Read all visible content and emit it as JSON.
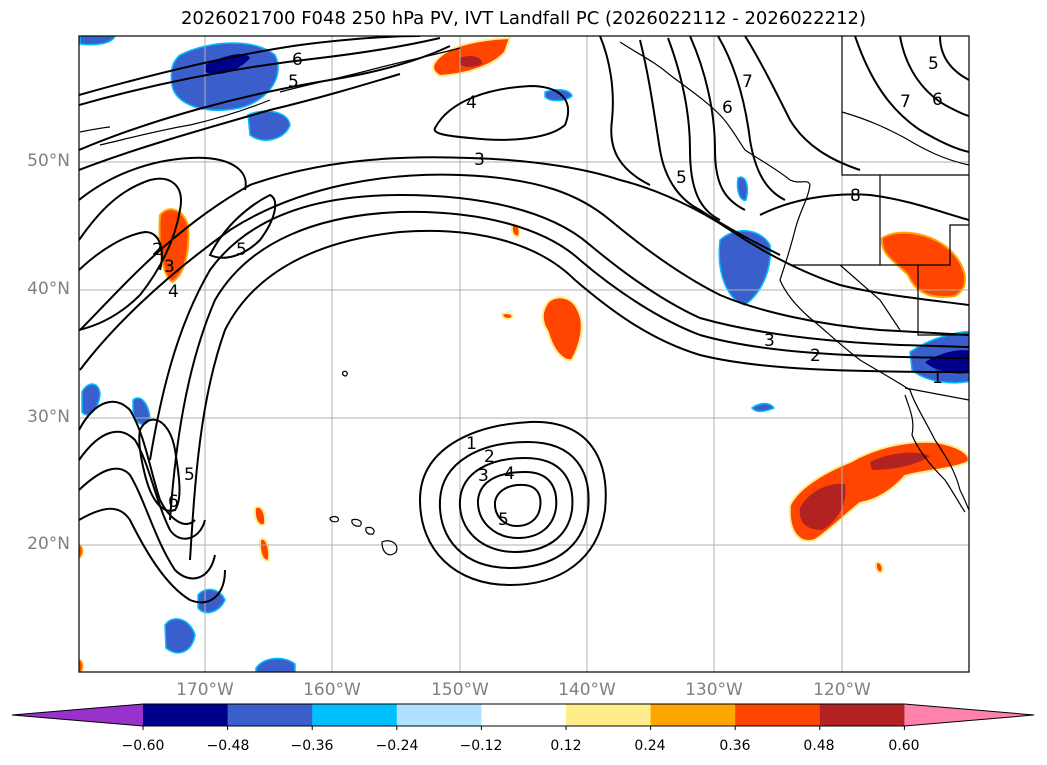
{
  "title": "2026021700 F048 250 hPa PV, IVT Landfall PC (2026022112 - 2026022212)",
  "latitude_labels": [
    "50°N",
    "40°N",
    "30°N",
    "20°N"
  ],
  "longitude_labels": [
    "170°W",
    "160°W",
    "150°W",
    "140°W",
    "130°W",
    "120°W"
  ],
  "colorbar": {
    "ticks": [
      "−0.60",
      "−0.48",
      "−0.36",
      "−0.24",
      "−0.12",
      "0.12",
      "0.24",
      "0.36",
      "0.48",
      "0.60"
    ],
    "colors": [
      "#9932cc",
      "#00008b",
      "#3a5fcd",
      "#00bfff",
      "#b0e2ff",
      "#ffffff",
      "#ffec8b",
      "#ffa500",
      "#ff4500",
      "#b22222",
      "#ff82ab"
    ]
  },
  "contour_labels": {
    "six_nw": "6",
    "five_nw": "5",
    "four_top": "4",
    "three_mid": "3",
    "five_left": "5",
    "four_left": "4",
    "three_left": "3",
    "two_left": "2",
    "five_lower_left": "5",
    "six_lower_left": "6",
    "one_low": "1",
    "two_low": "2",
    "three_low": "3",
    "four_low": "4",
    "five_low": "5",
    "five_coast": "5",
    "six_coast": "6",
    "seven_coast": "7",
    "eight_east": "8",
    "three_east": "3",
    "two_east": "2",
    "one_east": "1",
    "five_ne": "5",
    "six_ne": "6",
    "seven_ne": "7"
  }
}
